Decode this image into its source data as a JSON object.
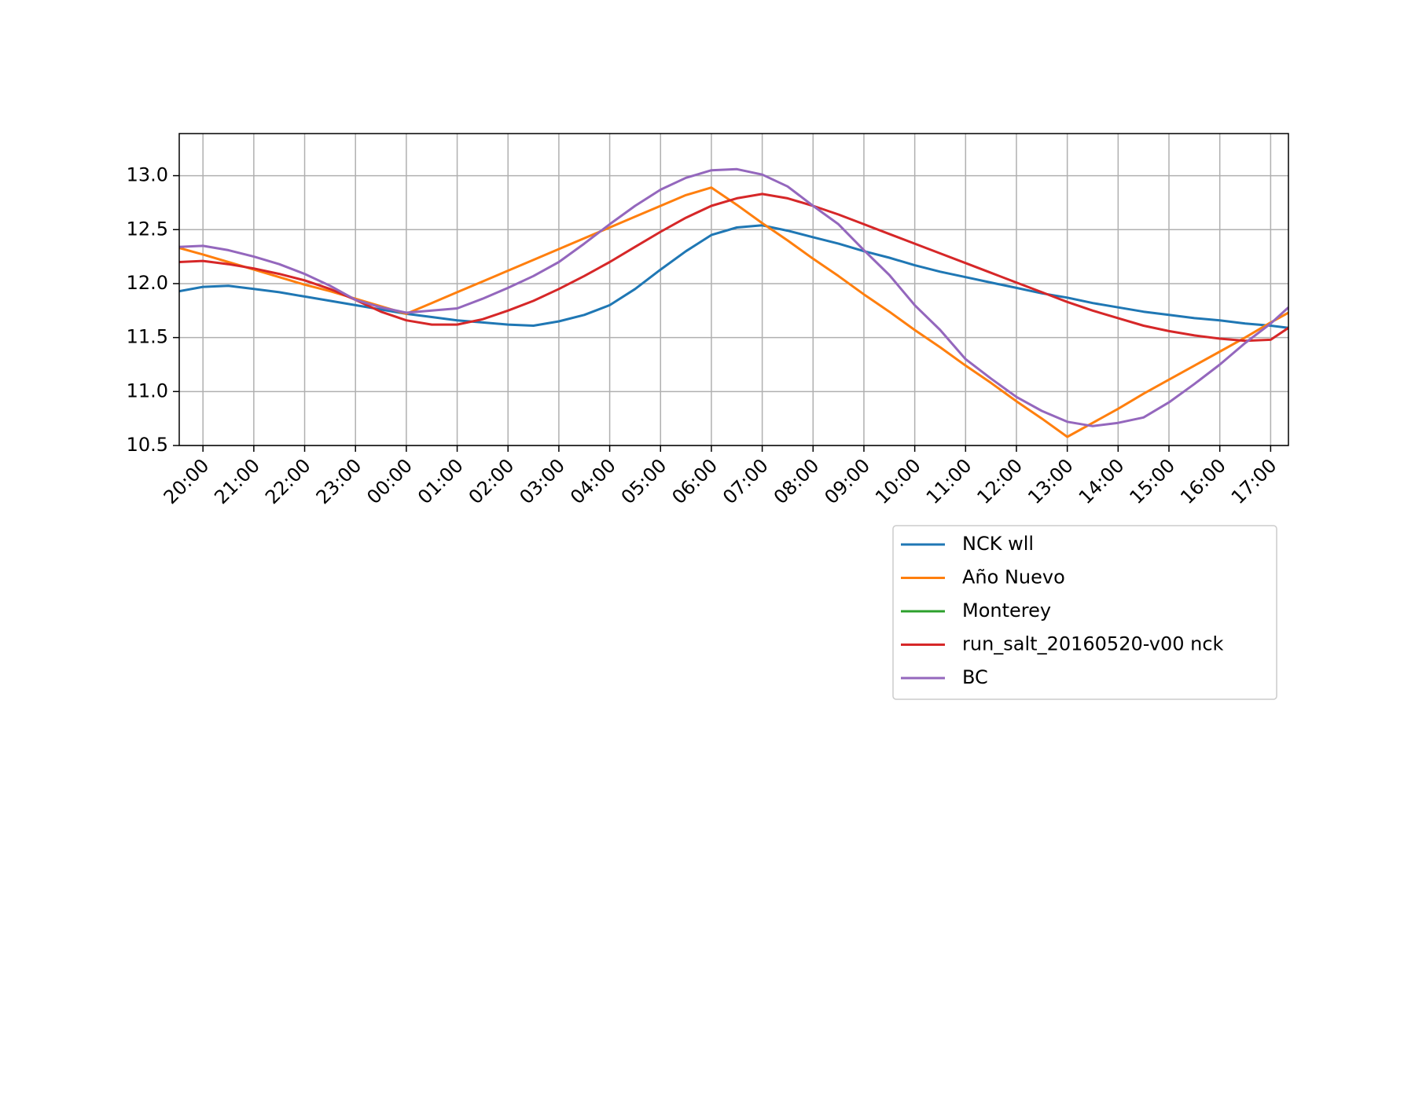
{
  "chart_data": {
    "type": "line",
    "x": [
      "19:32",
      "20:00",
      "20:30",
      "21:00",
      "21:30",
      "22:00",
      "22:30",
      "23:00",
      "23:30",
      "00:00",
      "00:30",
      "01:00",
      "01:30",
      "02:00",
      "02:30",
      "03:00",
      "03:30",
      "04:00",
      "04:30",
      "05:00",
      "05:30",
      "06:00",
      "06:30",
      "07:00",
      "07:30",
      "08:00",
      "08:30",
      "09:00",
      "09:30",
      "10:00",
      "10:30",
      "11:00",
      "11:30",
      "12:00",
      "12:30",
      "13:00",
      "13:30",
      "14:00",
      "14:30",
      "15:00",
      "15:30",
      "16:00",
      "16:30",
      "17:00",
      "17:21"
    ],
    "series": [
      {
        "name": "NCK wll",
        "color": "#1f77b4",
        "values": [
          11.93,
          11.97,
          11.98,
          11.95,
          11.92,
          11.88,
          11.84,
          11.8,
          11.76,
          11.72,
          11.69,
          11.66,
          11.64,
          11.62,
          11.61,
          11.65,
          11.71,
          11.8,
          11.95,
          12.13,
          12.3,
          12.45,
          12.52,
          12.54,
          12.49,
          12.43,
          12.37,
          12.3,
          12.24,
          12.17,
          12.11,
          12.06,
          12.01,
          11.96,
          11.91,
          11.87,
          11.82,
          11.78,
          11.74,
          11.71,
          11.68,
          11.66,
          11.63,
          11.61,
          11.59
        ]
      },
      {
        "name": "Año Nuevo",
        "color": "#ff7f0e",
        "values": [
          12.33,
          12.27,
          12.2,
          12.13,
          12.06,
          11.99,
          11.93,
          11.86,
          11.79,
          11.72,
          11.82,
          11.92,
          12.02,
          12.12,
          12.22,
          12.32,
          12.42,
          12.52,
          12.62,
          12.72,
          12.82,
          12.89,
          12.73,
          12.56,
          12.4,
          12.23,
          12.07,
          11.9,
          11.74,
          11.57,
          11.41,
          11.24,
          11.08,
          10.91,
          10.75,
          10.58,
          10.71,
          10.84,
          10.98,
          11.11,
          11.24,
          11.37,
          11.5,
          11.64,
          11.73
        ]
      },
      {
        "name": "Monterey",
        "color": "#2ca02c",
        "values": [
          null,
          null,
          null,
          null,
          null,
          null,
          null,
          null,
          null,
          null,
          null,
          null,
          null,
          null,
          null,
          null,
          null,
          null,
          null,
          null,
          null,
          null,
          null,
          null,
          null,
          null,
          null,
          null,
          null,
          null,
          null,
          null,
          null,
          null,
          null,
          null,
          null,
          null,
          null,
          null,
          null,
          null,
          null,
          null,
          null
        ]
      },
      {
        "name": "run_salt_20160520-v00 nck",
        "color": "#d62728",
        "values": [
          12.2,
          12.21,
          12.18,
          12.14,
          12.09,
          12.03,
          11.95,
          11.85,
          11.74,
          11.66,
          11.62,
          11.62,
          11.67,
          11.75,
          11.84,
          11.95,
          12.07,
          12.2,
          12.34,
          12.48,
          12.61,
          12.72,
          12.79,
          12.83,
          12.79,
          12.72,
          12.64,
          12.55,
          12.46,
          12.37,
          12.28,
          12.19,
          12.1,
          12.01,
          11.92,
          11.83,
          11.75,
          11.68,
          11.61,
          11.56,
          11.52,
          11.49,
          11.47,
          11.48,
          11.59
        ]
      },
      {
        "name": "BC",
        "color": "#9467bd",
        "values": [
          12.34,
          12.35,
          12.31,
          12.25,
          12.18,
          12.09,
          11.98,
          11.85,
          11.78,
          11.73,
          11.75,
          11.77,
          11.86,
          11.96,
          12.07,
          12.2,
          12.37,
          12.55,
          12.72,
          12.87,
          12.98,
          13.05,
          13.06,
          13.01,
          12.9,
          12.72,
          12.55,
          12.31,
          12.08,
          11.8,
          11.57,
          11.3,
          11.12,
          10.95,
          10.82,
          10.72,
          10.68,
          10.71,
          10.76,
          10.9,
          11.07,
          11.25,
          11.45,
          11.63,
          11.78
        ]
      }
    ],
    "xlim": [
      "19:32",
      "17:21"
    ],
    "xticks": [
      "20:00",
      "21:00",
      "22:00",
      "23:00",
      "00:00",
      "01:00",
      "02:00",
      "03:00",
      "04:00",
      "05:00",
      "06:00",
      "07:00",
      "08:00",
      "09:00",
      "10:00",
      "11:00",
      "12:00",
      "13:00",
      "14:00",
      "15:00",
      "16:00",
      "17:00"
    ],
    "ylim": [
      10.5,
      13.39
    ],
    "yticks": [
      10.5,
      {
        "value": 11,
        "label": "11.0"
      },
      11.5,
      {
        "value": 12,
        "label": "12.0"
      },
      12.5,
      {
        "value": 13,
        "label": "13.0"
      }
    ],
    "grid": true
  }
}
